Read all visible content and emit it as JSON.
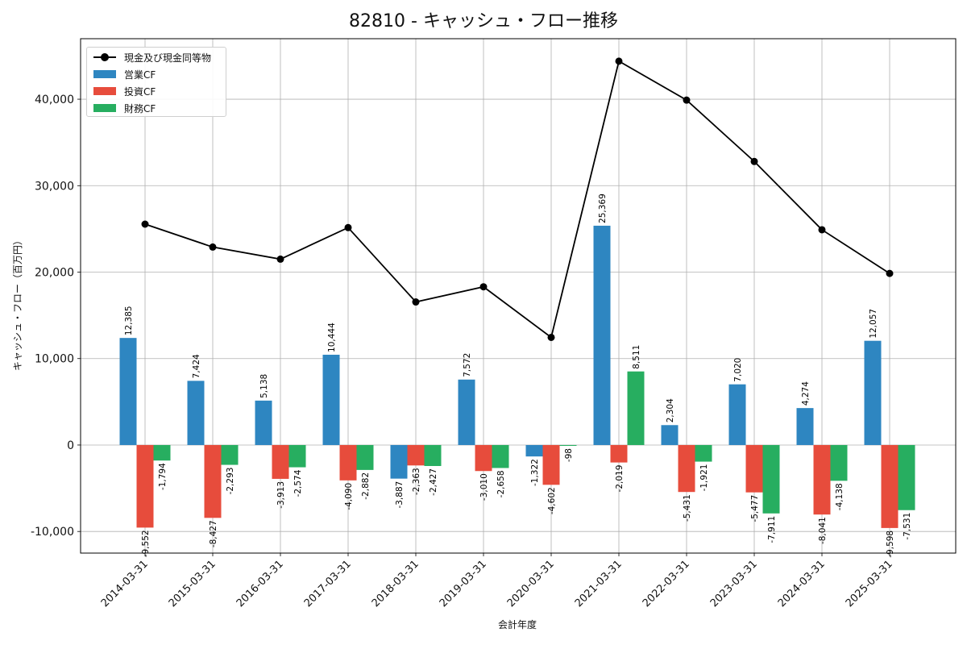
{
  "chart_data": {
    "type": "bar+line",
    "title": "82810 - キャッシュ・フロー推移",
    "xlabel": "会計年度",
    "ylabel": "キャッシュ・フロー（百万円）",
    "ylim": [
      -12500,
      47000
    ],
    "yticks": [
      -10000,
      0,
      10000,
      20000,
      30000,
      40000
    ],
    "ytick_labels": [
      "-10,000",
      "0",
      "10,000",
      "20,000",
      "30,000",
      "40,000"
    ],
    "grid": true,
    "legend_position": "top-left",
    "categories": [
      "2014-03-31",
      "2015-03-31",
      "2016-03-31",
      "2017-03-31",
      "2018-03-31",
      "2019-03-31",
      "2020-03-31",
      "2021-03-31",
      "2022-03-31",
      "2023-03-31",
      "2024-03-31",
      "2025-03-31"
    ],
    "line_series": {
      "name": "現金及び現金同等物",
      "color": "#000000",
      "values": [
        25550,
        22900,
        21500,
        25150,
        16550,
        18300,
        12450,
        44400,
        39900,
        32800,
        24900,
        19850
      ]
    },
    "series": [
      {
        "name": "営業CF",
        "color": "#2e86c1",
        "values": [
          12385,
          7424,
          5138,
          10444,
          -3887,
          7572,
          -1322,
          25369,
          2304,
          7020,
          4274,
          12057
        ],
        "labels": [
          "12,385",
          "7,424",
          "5,138",
          "10,444",
          "-3,887",
          "7,572",
          "-1,322",
          "25,369",
          "2,304",
          "7,020",
          "4,274",
          "12,057"
        ]
      },
      {
        "name": "投資CF",
        "color": "#e74c3c",
        "values": [
          -9552,
          -8427,
          -3913,
          -4090,
          -2363,
          -3010,
          -4602,
          -2019,
          -5431,
          -5477,
          -8041,
          -9598
        ],
        "labels": [
          "-9,552",
          "-8,427",
          "-3,913",
          "-4,090",
          "-2,363",
          "-3,010",
          "-4,602",
          "-2,019",
          "-5,431",
          "-5,477",
          "-8,041",
          "-9,598"
        ]
      },
      {
        "name": "財務CF",
        "color": "#27ae60",
        "values": [
          -1794,
          -2293,
          -2574,
          -2882,
          -2427,
          -2658,
          -98,
          8511,
          -1921,
          -7911,
          -4138,
          -7531
        ],
        "labels": [
          "-1,794",
          "-2,293",
          "-2,574",
          "-2,882",
          "-2,427",
          "-2,658",
          "-98",
          "8,511",
          "-1,921",
          "-7,911",
          "-4,138",
          "-7,531"
        ]
      }
    ]
  }
}
